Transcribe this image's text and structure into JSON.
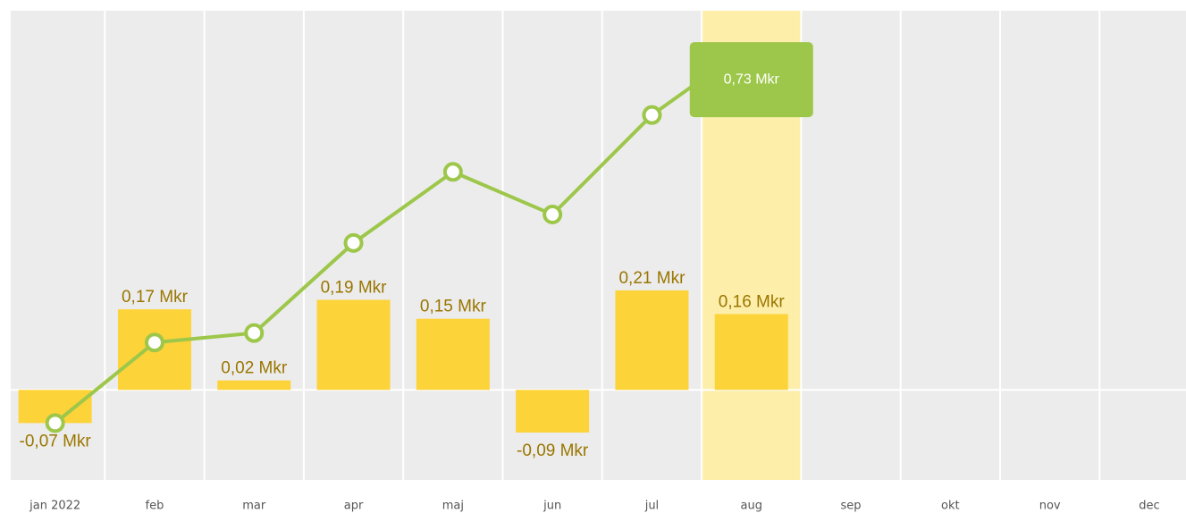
{
  "chart_data": {
    "type": "bar_line",
    "categories": [
      "jan 2022",
      "feb",
      "mar",
      "apr",
      "maj",
      "jun",
      "jul",
      "aug",
      "sep",
      "okt",
      "nov",
      "dec"
    ],
    "series": [
      {
        "type": "bar",
        "color": "#fdd33a",
        "values": [
          -0.07,
          0.17,
          0.02,
          0.19,
          0.15,
          -0.09,
          0.21,
          0.16,
          null,
          null,
          null,
          null
        ],
        "value_labels": [
          "-0,07 Mkr",
          "0,17 Mkr",
          "0,02 Mkr",
          "0,19 Mkr",
          "0,15 Mkr",
          "-0,09 Mkr",
          "0,21 Mkr",
          "0,16 Mkr",
          null,
          null,
          null,
          null
        ]
      },
      {
        "type": "line",
        "color": "#9dc74a",
        "values": [
          -0.07,
          0.1,
          0.12,
          0.31,
          0.46,
          0.37,
          0.58,
          0.73,
          null,
          null,
          null,
          null
        ],
        "value_labels": [
          null,
          null,
          null,
          null,
          null,
          null,
          null,
          "0,73 Mkr",
          null,
          null,
          null,
          null
        ]
      }
    ],
    "ylim": [
      -0.19,
      0.8
    ],
    "grid": true
  }
}
